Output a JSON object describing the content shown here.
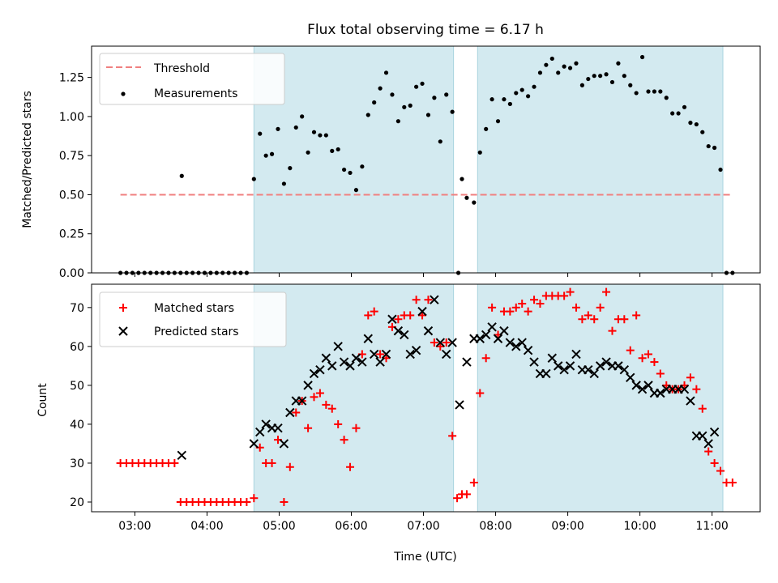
{
  "chart_data": [
    {
      "type": "scatter",
      "title": "Flux total observing time = 6.17 h",
      "ylabel": "Matched/Predicted stars",
      "xlabel": "",
      "xlim": [
        "02:24",
        "11:40"
      ],
      "ylim": [
        0,
        1.45
      ],
      "yticks": [
        0.0,
        0.25,
        0.5,
        0.75,
        1.0,
        1.25
      ],
      "ytick_labels": [
        "0.00",
        "0.25",
        "0.50",
        "0.75",
        "1.00",
        "1.25"
      ],
      "grid": false,
      "legend_position": "upper-left",
      "shaded_intervals": [
        [
          "04:39",
          "07:25"
        ],
        [
          "07:45",
          "11:09"
        ]
      ],
      "shade_color": "#d3eaf0",
      "threshold": {
        "name": "Threshold",
        "value": 0.5,
        "x_range": [
          "02:48",
          "11:15"
        ],
        "color": "#f08080"
      },
      "measurements": {
        "name": "Measurements",
        "color": "#000000",
        "x": [
          "02:48",
          "02:53",
          "02:58",
          "03:03",
          "03:08",
          "03:13",
          "03:18",
          "03:23",
          "03:28",
          "03:33",
          "03:38",
          "03:43",
          "03:48",
          "03:53",
          "03:58",
          "04:03",
          "04:08",
          "04:13",
          "04:18",
          "04:23",
          "04:28",
          "04:33",
          "04:39",
          "04:44",
          "04:49",
          "04:54",
          "04:59",
          "05:04",
          "05:09",
          "05:14",
          "05:19",
          "05:24",
          "05:29",
          "05:34",
          "05:39",
          "05:44",
          "05:49",
          "05:54",
          "05:59",
          "06:04",
          "06:09",
          "06:14",
          "06:19",
          "06:24",
          "06:29",
          "06:34",
          "06:39",
          "06:44",
          "06:49",
          "06:54",
          "06:59",
          "07:04",
          "07:09",
          "07:14",
          "07:19",
          "07:24",
          "07:32",
          "07:36",
          "07:42",
          "07:47",
          "07:52",
          "07:57",
          "08:02",
          "08:07",
          "08:12",
          "08:17",
          "08:22",
          "08:27",
          "08:32",
          "08:37",
          "08:42",
          "08:47",
          "08:52",
          "08:57",
          "09:02",
          "09:07",
          "09:12",
          "09:17",
          "09:22",
          "09:27",
          "09:32",
          "09:37",
          "09:42",
          "09:47",
          "09:52",
          "09:57",
          "10:02",
          "10:07",
          "10:12",
          "10:17",
          "10:22",
          "10:27",
          "10:32",
          "10:37",
          "10:42",
          "10:47",
          "10:52",
          "10:57",
          "11:02",
          "11:07",
          "11:12",
          "11:17",
          "03:39",
          "07:29"
        ],
        "y": [
          0,
          0,
          0,
          0,
          0,
          0,
          0,
          0,
          0,
          0,
          0,
          0,
          0,
          0,
          0,
          0,
          0,
          0,
          0,
          0,
          0,
          0,
          0.6,
          0.89,
          0.75,
          0.76,
          0.92,
          0.57,
          0.67,
          0.93,
          1.0,
          0.77,
          0.9,
          0.88,
          0.88,
          0.78,
          0.79,
          0.66,
          0.64,
          0.53,
          0.68,
          1.01,
          1.09,
          1.18,
          1.28,
          1.14,
          0.97,
          1.06,
          1.07,
          1.19,
          1.21,
          1.01,
          1.12,
          0.84,
          1.14,
          1.03,
          0.6,
          0.48,
          0.45,
          0.77,
          0.92,
          1.11,
          0.97,
          1.11,
          1.08,
          1.15,
          1.17,
          1.13,
          1.19,
          1.28,
          1.33,
          1.37,
          1.28,
          1.32,
          1.31,
          1.34,
          1.2,
          1.24,
          1.26,
          1.26,
          1.27,
          1.22,
          1.34,
          1.26,
          1.2,
          1.15,
          1.38,
          1.16,
          1.16,
          1.16,
          1.12,
          1.02,
          1.02,
          1.06,
          0.96,
          0.95,
          0.9,
          0.81,
          0.8,
          0.66,
          0,
          0,
          0.62,
          0
        ]
      }
    },
    {
      "type": "scatter",
      "title": "",
      "ylabel": "Count",
      "xlabel": "Time (UTC)",
      "xlim": [
        "02:24",
        "11:40"
      ],
      "ylim": [
        17.5,
        76
      ],
      "yticks": [
        20,
        30,
        40,
        50,
        60,
        70
      ],
      "ytick_labels": [
        "20",
        "30",
        "40",
        "50",
        "60",
        "70"
      ],
      "xticks": [
        "03:00",
        "04:00",
        "05:00",
        "06:00",
        "07:00",
        "08:00",
        "09:00",
        "10:00",
        "11:00"
      ],
      "grid": false,
      "legend_position": "upper-left",
      "shaded_intervals": [
        [
          "04:39",
          "07:25"
        ],
        [
          "07:45",
          "11:09"
        ]
      ],
      "shade_color": "#d3eaf0",
      "series": [
        {
          "name": "Matched stars",
          "marker": "plus",
          "color": "#ff0000",
          "x": [
            "02:48",
            "02:53",
            "02:58",
            "03:03",
            "03:08",
            "03:13",
            "03:18",
            "03:23",
            "03:28",
            "03:33",
            "03:38",
            "03:43",
            "03:48",
            "03:53",
            "03:58",
            "04:03",
            "04:08",
            "04:13",
            "04:18",
            "04:23",
            "04:28",
            "04:33",
            "04:39",
            "04:44",
            "04:49",
            "04:54",
            "04:59",
            "05:04",
            "05:09",
            "05:14",
            "05:19",
            "05:24",
            "05:29",
            "05:34",
            "05:39",
            "05:44",
            "05:49",
            "05:54",
            "05:59",
            "06:04",
            "06:09",
            "06:14",
            "06:19",
            "06:24",
            "06:29",
            "06:34",
            "06:39",
            "06:44",
            "06:49",
            "06:54",
            "06:59",
            "07:04",
            "07:09",
            "07:14",
            "07:19",
            "07:24",
            "07:32",
            "07:36",
            "07:42",
            "07:47",
            "07:52",
            "07:57",
            "08:02",
            "08:07",
            "08:12",
            "08:17",
            "08:22",
            "08:27",
            "08:32",
            "08:37",
            "08:42",
            "08:47",
            "08:52",
            "08:57",
            "09:02",
            "09:07",
            "09:12",
            "09:17",
            "09:22",
            "09:27",
            "09:32",
            "09:37",
            "09:42",
            "09:47",
            "09:52",
            "09:57",
            "10:02",
            "10:07",
            "10:12",
            "10:17",
            "10:22",
            "10:27",
            "10:32",
            "10:37",
            "10:42",
            "10:47",
            "10:52",
            "10:57",
            "11:02",
            "11:07",
            "11:12",
            "11:17",
            "07:28"
          ],
          "y": [
            30,
            30,
            30,
            30,
            30,
            30,
            30,
            30,
            30,
            30,
            20,
            20,
            20,
            20,
            20,
            20,
            20,
            20,
            20,
            20,
            20,
            20,
            21,
            34,
            30,
            30,
            36,
            20,
            29,
            43,
            46,
            39,
            47,
            48,
            45,
            44,
            40,
            36,
            29,
            39,
            58,
            68,
            69,
            58,
            57,
            65,
            67,
            68,
            68,
            72,
            68,
            72,
            61,
            60,
            61,
            37,
            22,
            22,
            25,
            48,
            57,
            70,
            63,
            69,
            69,
            70,
            71,
            69,
            72,
            71,
            73,
            73,
            73,
            73,
            74,
            70,
            67,
            68,
            67,
            70,
            74,
            64,
            67,
            67,
            59,
            68,
            57,
            58,
            56,
            53,
            50,
            49,
            49,
            50,
            52,
            49,
            44,
            33,
            30,
            28,
            25,
            25,
            21
          ]
        },
        {
          "name": "Predicted stars",
          "marker": "x",
          "color": "#000000",
          "x": [
            "03:39",
            "04:39",
            "04:44",
            "04:49",
            "04:54",
            "04:59",
            "05:04",
            "05:09",
            "05:14",
            "05:19",
            "05:24",
            "05:29",
            "05:34",
            "05:39",
            "05:44",
            "05:49",
            "05:54",
            "05:59",
            "06:04",
            "06:09",
            "06:14",
            "06:19",
            "06:24",
            "06:29",
            "06:34",
            "06:39",
            "06:44",
            "06:49",
            "06:54",
            "06:59",
            "07:04",
            "07:09",
            "07:14",
            "07:19",
            "07:24",
            "07:30",
            "07:36",
            "07:42",
            "07:47",
            "07:52",
            "07:57",
            "08:02",
            "08:07",
            "08:12",
            "08:17",
            "08:22",
            "08:27",
            "08:32",
            "08:37",
            "08:42",
            "08:47",
            "08:52",
            "08:57",
            "09:02",
            "09:07",
            "09:12",
            "09:17",
            "09:22",
            "09:27",
            "09:32",
            "09:37",
            "09:42",
            "09:47",
            "09:52",
            "09:57",
            "10:02",
            "10:07",
            "10:12",
            "10:17",
            "10:22",
            "10:27",
            "10:32",
            "10:37",
            "10:42",
            "10:47",
            "10:52",
            "10:57",
            "11:02",
            "11:07",
            "11:12",
            "11:17"
          ],
          "y": [
            32,
            35,
            38,
            40,
            39,
            39,
            35,
            43,
            46,
            46,
            50,
            53,
            54,
            57,
            55,
            60,
            56,
            55,
            57,
            56,
            62,
            58,
            56,
            58,
            67,
            64,
            63,
            58,
            59,
            69,
            64,
            72,
            61,
            58,
            61,
            45,
            56,
            62,
            62,
            63,
            65,
            62,
            64,
            61,
            60,
            61,
            59,
            56,
            53,
            53,
            57,
            55,
            54,
            55,
            58,
            54,
            54,
            53,
            55,
            56,
            55,
            55,
            54,
            52,
            50,
            49,
            50,
            48,
            48,
            49,
            49,
            49,
            49,
            46,
            37,
            37,
            35,
            38,
            null,
            null,
            null
          ]
        }
      ]
    }
  ]
}
